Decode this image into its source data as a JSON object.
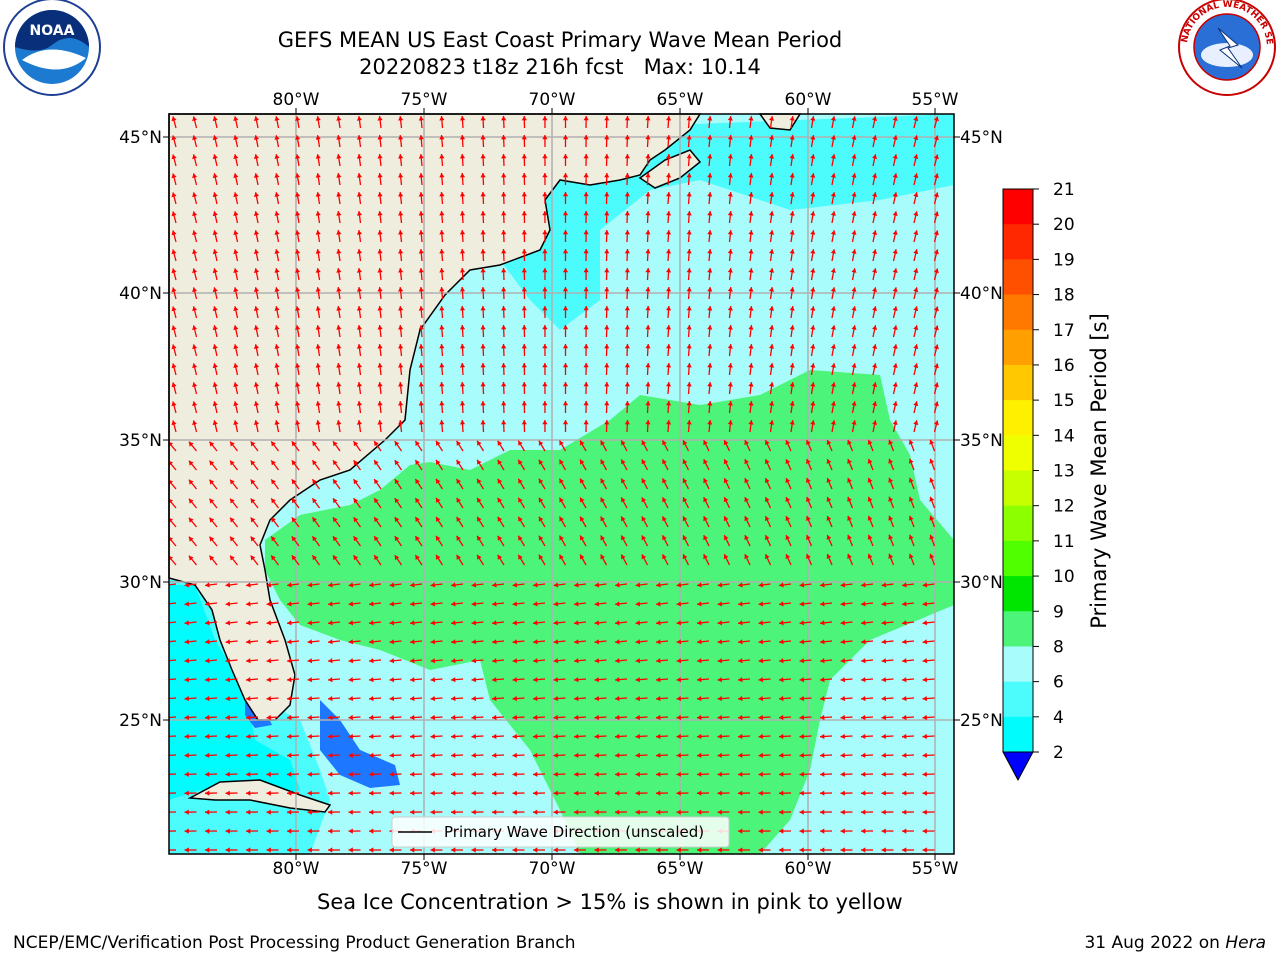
{
  "header": {
    "title_line1": "GEFS MEAN US East Coast Primary Wave Mean Period",
    "title_line2": "20220823 t18z 216h fcst   Max: 10.14",
    "left_logo_text": "NOAA",
    "right_logo_text": "NATIONAL WEATHER SERVICE"
  },
  "map": {
    "lon_ticks": [
      "80°W",
      "75°W",
      "70°W",
      "65°W",
      "60°W",
      "55°W"
    ],
    "lat_ticks": [
      "45°N",
      "40°N",
      "35°N",
      "30°N",
      "25°N"
    ],
    "legend_label": "Primary Wave Direction (unscaled)",
    "colors": {
      "land": "#efedde",
      "ocean_6_8": "#4cfcfc",
      "ocean_8_9": "#a8fcfc",
      "ocean_9_10": "#4cf579",
      "ocean_4_6": "#00fcfc",
      "ocean_2_4": "#1e78ff",
      "arrow": "#ff0000",
      "grid": "#b0b0b0"
    }
  },
  "colorbar": {
    "label": "Primary Wave Mean Period [s]",
    "ticks": [
      "21",
      "20",
      "19",
      "18",
      "17",
      "16",
      "15",
      "14",
      "13",
      "12",
      "11",
      "10",
      "9",
      "8",
      "6",
      "4",
      "2"
    ],
    "colors": [
      "#ff0000",
      "#ff2800",
      "#ff5000",
      "#ff7800",
      "#ffa000",
      "#ffc800",
      "#fff000",
      "#f0ff00",
      "#c8ff00",
      "#8cff00",
      "#50ff00",
      "#00e600",
      "#4cf579",
      "#a8fcfc",
      "#4cfcfc",
      "#00fcfc",
      "#1e78ff"
    ],
    "extend_color": "#0000ff"
  },
  "footer": {
    "note": "Sea Ice Concentration > 15% is shown in pink to yellow",
    "credit": "NCEP/EMC/Verification Post Processing Product Generation Branch",
    "date": "31 Aug 2022 on ",
    "machine": "Hera"
  }
}
